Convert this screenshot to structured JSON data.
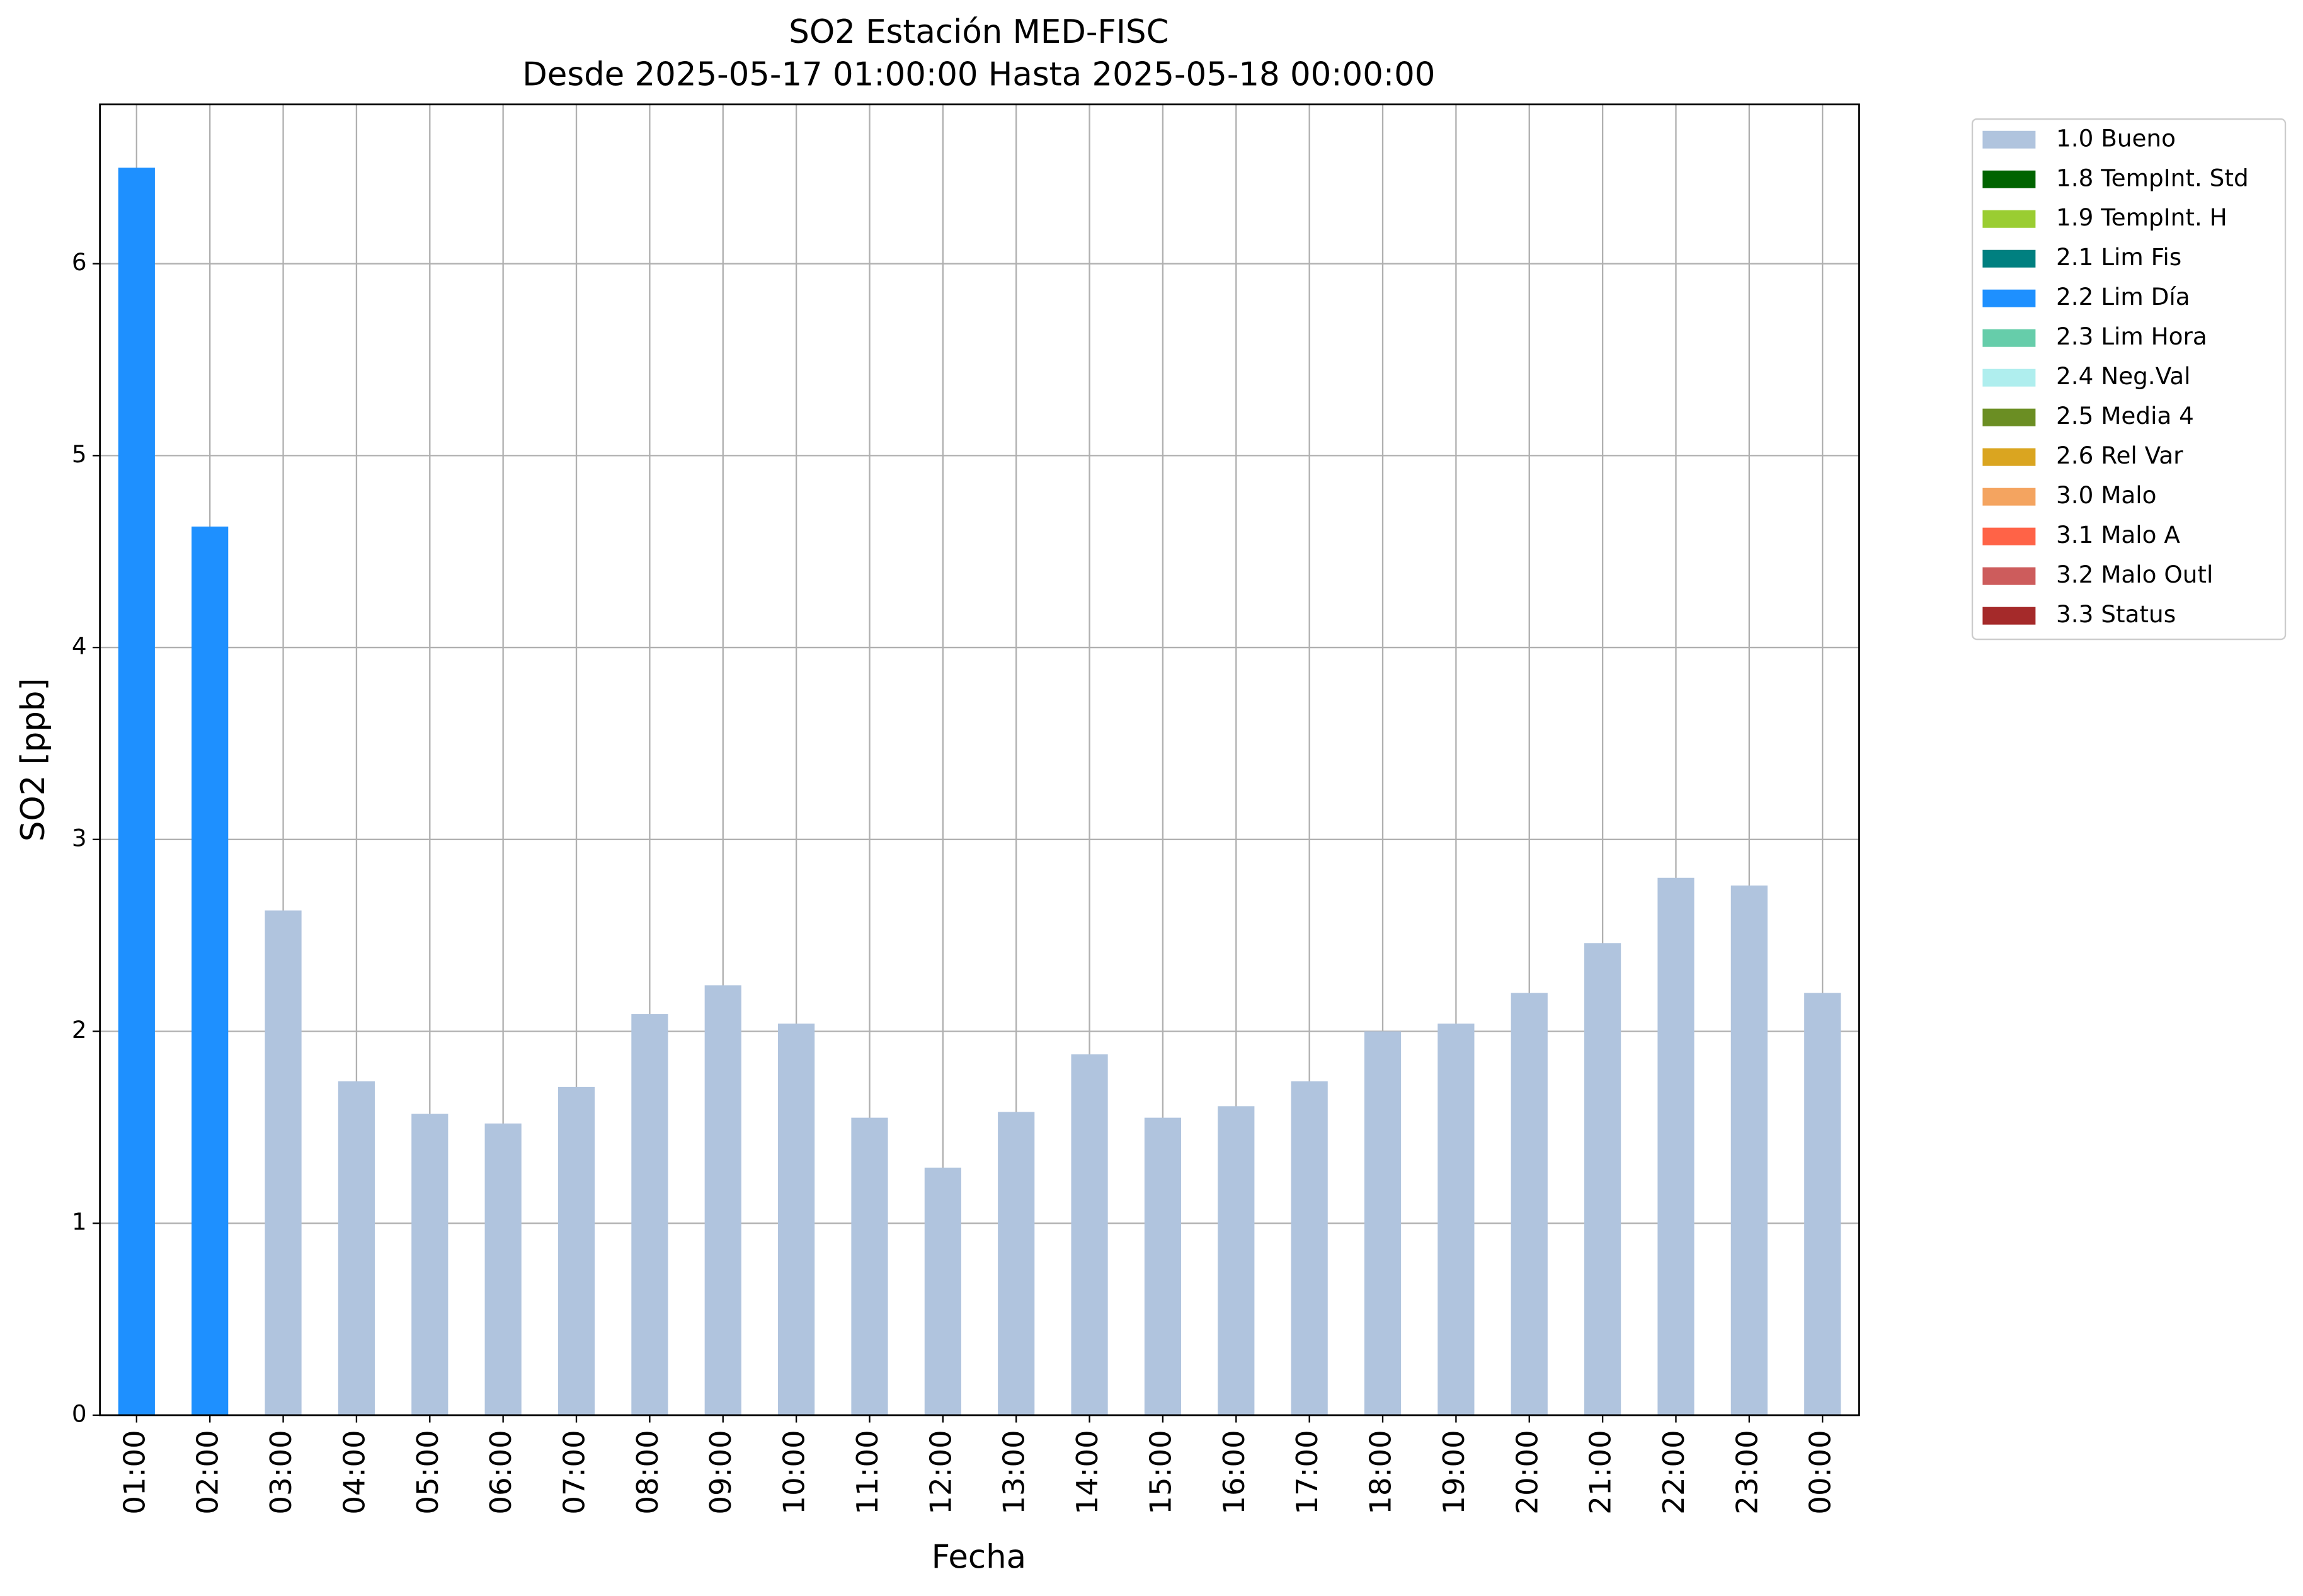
{
  "chart_data": {
    "type": "bar",
    "stacked": true,
    "title": "SO2 Estación MED-FISC",
    "subtitle": "Desde 2025-05-17 01:00:00 Hasta 2025-05-18 00:00:00",
    "x_label": "Fecha",
    "y_label": "SO2 [ppb]",
    "categories": [
      "01:00",
      "02:00",
      "03:00",
      "04:00",
      "05:00",
      "06:00",
      "07:00",
      "08:00",
      "09:00",
      "10:00",
      "11:00",
      "12:00",
      "13:00",
      "14:00",
      "15:00",
      "16:00",
      "17:00",
      "18:00",
      "19:00",
      "20:00",
      "21:00",
      "22:00",
      "23:00",
      "00:00"
    ],
    "ylim": [
      0,
      6.83
    ],
    "yticks": [
      0,
      1,
      2,
      3,
      4,
      5,
      6
    ],
    "grid": true,
    "legend": "outside-right",
    "series": [
      {
        "name": "1.0 Bueno",
        "color": "#b0c4de",
        "values": [
          null,
          null,
          2.63,
          1.74,
          1.57,
          1.52,
          1.71,
          2.09,
          2.24,
          2.04,
          1.55,
          1.29,
          1.58,
          1.88,
          1.55,
          1.61,
          1.74,
          2.0,
          2.04,
          2.2,
          2.46,
          2.8,
          2.76,
          2.2
        ]
      },
      {
        "name": "1.8 TempInt. Std",
        "color": "#006400",
        "values": [
          null,
          null,
          null,
          null,
          null,
          null,
          null,
          null,
          null,
          null,
          null,
          null,
          null,
          null,
          null,
          null,
          null,
          null,
          null,
          null,
          null,
          null,
          null,
          null
        ]
      },
      {
        "name": "1.9 TempInt. H",
        "color": "#9acd32",
        "values": [
          null,
          null,
          null,
          null,
          null,
          null,
          null,
          null,
          null,
          null,
          null,
          null,
          null,
          null,
          null,
          null,
          null,
          null,
          null,
          null,
          null,
          null,
          null,
          null
        ]
      },
      {
        "name": "2.1 Lim Fis",
        "color": "#008080",
        "values": [
          null,
          null,
          null,
          null,
          null,
          null,
          null,
          null,
          null,
          null,
          null,
          null,
          null,
          null,
          null,
          null,
          null,
          null,
          null,
          null,
          null,
          null,
          null,
          null
        ]
      },
      {
        "name": "2.2 Lim Día",
        "color": "#1e90ff",
        "values": [
          6.5,
          4.63,
          null,
          null,
          null,
          null,
          null,
          null,
          null,
          null,
          null,
          null,
          null,
          null,
          null,
          null,
          null,
          null,
          null,
          null,
          null,
          null,
          null,
          null
        ]
      },
      {
        "name": "2.3 Lim Hora",
        "color": "#66cdaa",
        "values": [
          null,
          null,
          null,
          null,
          null,
          null,
          null,
          null,
          null,
          null,
          null,
          null,
          null,
          null,
          null,
          null,
          null,
          null,
          null,
          null,
          null,
          null,
          null,
          null
        ]
      },
      {
        "name": "2.4 Neg.Val",
        "color": "#afeeee",
        "values": [
          null,
          null,
          null,
          null,
          null,
          null,
          null,
          null,
          null,
          null,
          null,
          null,
          null,
          null,
          null,
          null,
          null,
          null,
          null,
          null,
          null,
          null,
          null,
          null
        ]
      },
      {
        "name": "2.5 Media 4",
        "color": "#6b8e23",
        "values": [
          null,
          null,
          null,
          null,
          null,
          null,
          null,
          null,
          null,
          null,
          null,
          null,
          null,
          null,
          null,
          null,
          null,
          null,
          null,
          null,
          null,
          null,
          null,
          null
        ]
      },
      {
        "name": "2.6 Rel Var",
        "color": "#daa520",
        "values": [
          null,
          null,
          null,
          null,
          null,
          null,
          null,
          null,
          null,
          null,
          null,
          null,
          null,
          null,
          null,
          null,
          null,
          null,
          null,
          null,
          null,
          null,
          null,
          null
        ]
      },
      {
        "name": "3.0 Malo",
        "color": "#f4a460",
        "values": [
          null,
          null,
          null,
          null,
          null,
          null,
          null,
          null,
          null,
          null,
          null,
          null,
          null,
          null,
          null,
          null,
          null,
          null,
          null,
          null,
          null,
          null,
          null,
          null
        ]
      },
      {
        "name": "3.1 Malo A",
        "color": "#ff6347",
        "values": [
          null,
          null,
          null,
          null,
          null,
          null,
          null,
          null,
          null,
          null,
          null,
          null,
          null,
          null,
          null,
          null,
          null,
          null,
          null,
          null,
          null,
          null,
          null,
          null
        ]
      },
      {
        "name": "3.2 Malo Outl",
        "color": "#cd5c5c",
        "values": [
          null,
          null,
          null,
          null,
          null,
          null,
          null,
          null,
          null,
          null,
          null,
          null,
          null,
          null,
          null,
          null,
          null,
          null,
          null,
          null,
          null,
          null,
          null,
          null
        ]
      },
      {
        "name": "3.3 Status",
        "color": "#a52a2a",
        "values": [
          null,
          null,
          null,
          null,
          null,
          null,
          null,
          null,
          null,
          null,
          null,
          null,
          null,
          null,
          null,
          null,
          null,
          null,
          null,
          null,
          null,
          null,
          null,
          null
        ]
      }
    ]
  }
}
